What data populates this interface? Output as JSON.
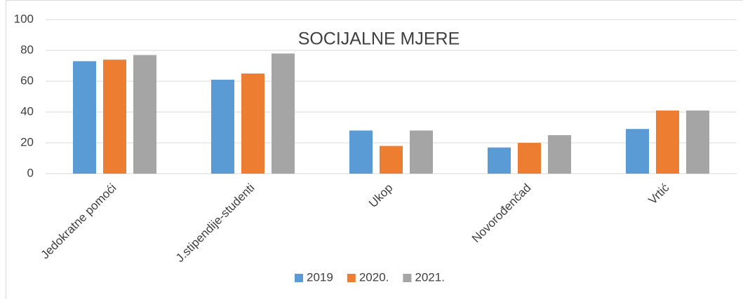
{
  "chart_data": {
    "type": "bar",
    "title": "SOCIJALNE MJERE",
    "categories": [
      "Jedokratne pomoći",
      "J.stipendije-studenti",
      "Ukop",
      "Novorođenčad",
      "Vrtić"
    ],
    "series": [
      {
        "name": "2019",
        "color": "#5b9bd5",
        "values": [
          73,
          61,
          28,
          17,
          29
        ]
      },
      {
        "name": "2020.",
        "color": "#ed7d31",
        "values": [
          74,
          65,
          18,
          20,
          41
        ]
      },
      {
        "name": "2021.",
        "color": "#a5a5a5",
        "values": [
          77,
          78,
          28,
          25,
          41
        ]
      }
    ],
    "ylim": [
      0,
      100
    ],
    "yticks": [
      0,
      20,
      40,
      60,
      80,
      100
    ],
    "grid": true,
    "legend": "bottom"
  }
}
